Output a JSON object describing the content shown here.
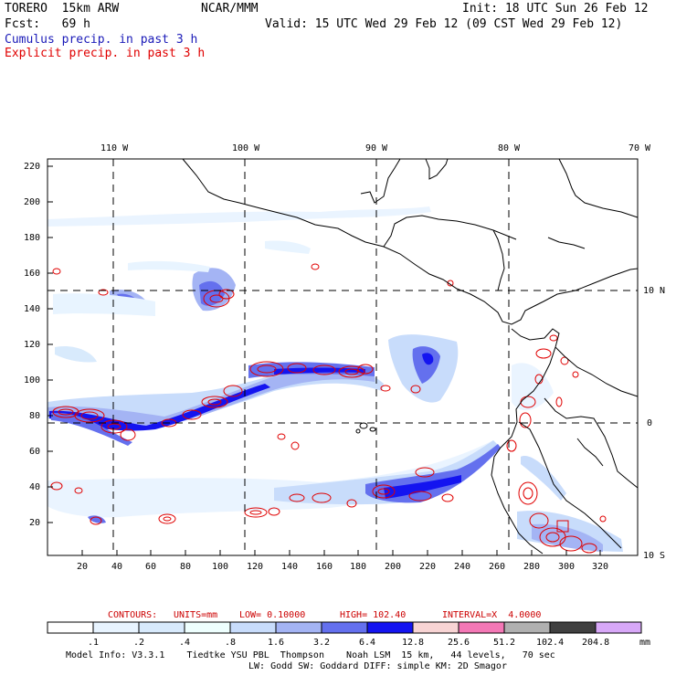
{
  "header": {
    "model": "TORERO  15km ARW",
    "org": "NCAR/MMM",
    "init": "Init: 18 UTC Sun 26 Feb 12",
    "fcst": "Fcst:   69 h",
    "valid": "Valid: 15 UTC Wed 29 Feb 12 (09 CST Wed 29 Feb 12)",
    "field1": "Cumulus precip. in past 3 h",
    "field2": "Explicit precip. in past 3 h",
    "field1_color": "#1a1ab8",
    "field2_color": "#e00000"
  },
  "map": {
    "lon_labels": [
      "110 W",
      "100 W",
      "90 W",
      "80 W",
      "70 W"
    ],
    "lat_labels": [
      "10 N",
      "0",
      "10 S"
    ],
    "y_ticks": [
      "220",
      "200",
      "180",
      "160",
      "140",
      "120",
      "100",
      "80",
      "60",
      "40",
      "20"
    ],
    "x_ticks": [
      "20",
      "40",
      "60",
      "80",
      "100",
      "120",
      "140",
      "160",
      "180",
      "200",
      "220",
      "240",
      "260",
      "280",
      "300",
      "320"
    ]
  },
  "contour_info": {
    "contours": "CONTOURS:",
    "units": "UNITS=mm",
    "low": "LOW= 0.10000",
    "high": "HIGH= 102.40",
    "interval": "INTERVAL=X  4.0000",
    "color": "#cc0000"
  },
  "colorbar": {
    "labels": [
      ".1",
      ".2",
      ".4",
      ".8",
      "1.6",
      "3.2",
      "6.4",
      "12.8",
      "25.6",
      "51.2",
      "102.4",
      "204.8"
    ],
    "unit": "mm",
    "colors": [
      "#ffffff",
      "#e8f4ff",
      "#d8eafc",
      "#eefffe",
      "#c8dcfb",
      "#a4b4f4",
      "#6470ee",
      "#1414f0",
      "#f8d4d4",
      "#f478b6",
      "#b0b0b0",
      "#404040",
      "#d8a8f8"
    ]
  },
  "footer": {
    "line1": "Model Info: V3.3.1    Tiedtke YSU PBL  Thompson    Noah LSM  15 km,   44 levels,   70 sec",
    "line2": "LW: Godd SW: Goddard DIFF: simple KM: 2D Smagor"
  }
}
